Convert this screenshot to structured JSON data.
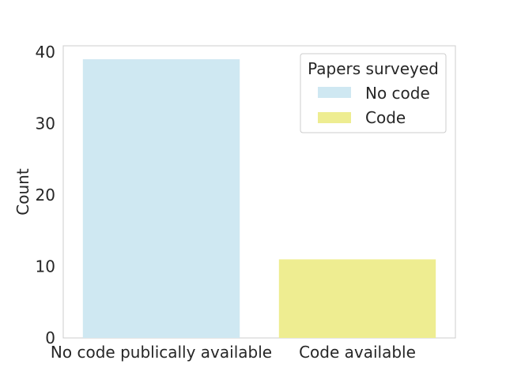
{
  "chart_data": {
    "type": "bar",
    "categories": [
      "No code publically available",
      "Code available"
    ],
    "values": [
      39,
      11
    ],
    "bar_colors": [
      "#cfe8f2",
      "#eeed91"
    ],
    "xlabel": "",
    "ylabel": "Count",
    "ylim": [
      0,
      40
    ],
    "yticks": [
      0,
      10,
      20,
      30,
      40
    ],
    "grid": false,
    "legend": {
      "title": "Papers surveyed",
      "position": "top-right",
      "entries": [
        {
          "label": "No code",
          "color": "#cfe8f2"
        },
        {
          "label": "Code",
          "color": "#eeed91"
        }
      ]
    }
  }
}
